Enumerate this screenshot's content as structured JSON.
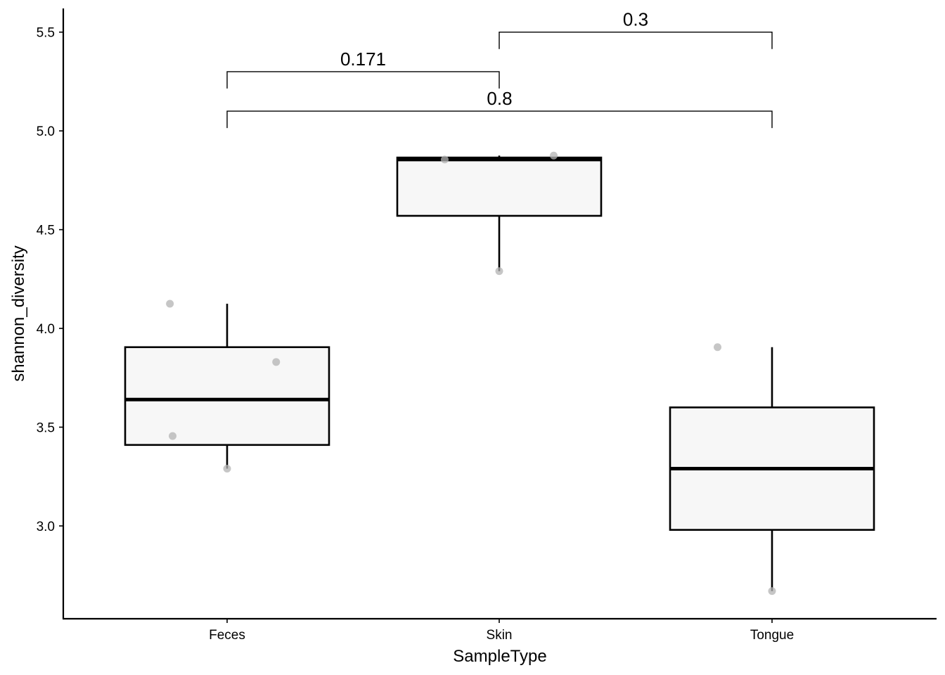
{
  "chart_data": {
    "type": "box",
    "xlabel": "SampleType",
    "ylabel": "shannon_diversity",
    "ylim": [
      2.53,
      5.62
    ],
    "yticks": [
      3.0,
      3.5,
      4.0,
      4.5,
      5.0,
      5.5
    ],
    "ytick_labels": [
      "3.0",
      "3.5",
      "4.0",
      "4.5",
      "5.0",
      "5.5"
    ],
    "grid": false,
    "legend": "none",
    "categories": [
      "Feces",
      "Skin",
      "Tongue"
    ],
    "boxes": [
      {
        "category": "Feces",
        "whisker_low": 3.29,
        "q1": 3.41,
        "median": 3.64,
        "q3": 3.905,
        "whisker_high": 4.125
      },
      {
        "category": "Skin",
        "whisker_low": 4.29,
        "q1": 4.57,
        "median": 4.855,
        "q3": 4.865,
        "whisker_high": 4.875
      },
      {
        "category": "Tongue",
        "whisker_low": 2.67,
        "q1": 2.98,
        "median": 3.29,
        "q3": 3.6,
        "whisker_high": 3.905
      }
    ],
    "points": [
      {
        "category": "Feces",
        "jitter": -0.21,
        "y": 4.125
      },
      {
        "category": "Feces",
        "jitter": 0.18,
        "y": 3.83
      },
      {
        "category": "Feces",
        "jitter": -0.2,
        "y": 3.455
      },
      {
        "category": "Feces",
        "jitter": 0.0,
        "y": 3.29
      },
      {
        "category": "Skin",
        "jitter": -0.2,
        "y": 4.855
      },
      {
        "category": "Skin",
        "jitter": 0.2,
        "y": 4.875
      },
      {
        "category": "Skin",
        "jitter": 0.0,
        "y": 4.29
      },
      {
        "category": "Tongue",
        "jitter": -0.2,
        "y": 3.905
      },
      {
        "category": "Tongue",
        "jitter": 0.0,
        "y": 2.67
      }
    ],
    "comparisons": [
      {
        "from": "Feces",
        "to": "Skin",
        "y": 5.3,
        "label": "0.171"
      },
      {
        "from": "Skin",
        "to": "Tongue",
        "y": 5.5,
        "label": "0.3"
      },
      {
        "from": "Feces",
        "to": "Tongue",
        "y": 5.1,
        "label": "0.8"
      }
    ]
  }
}
